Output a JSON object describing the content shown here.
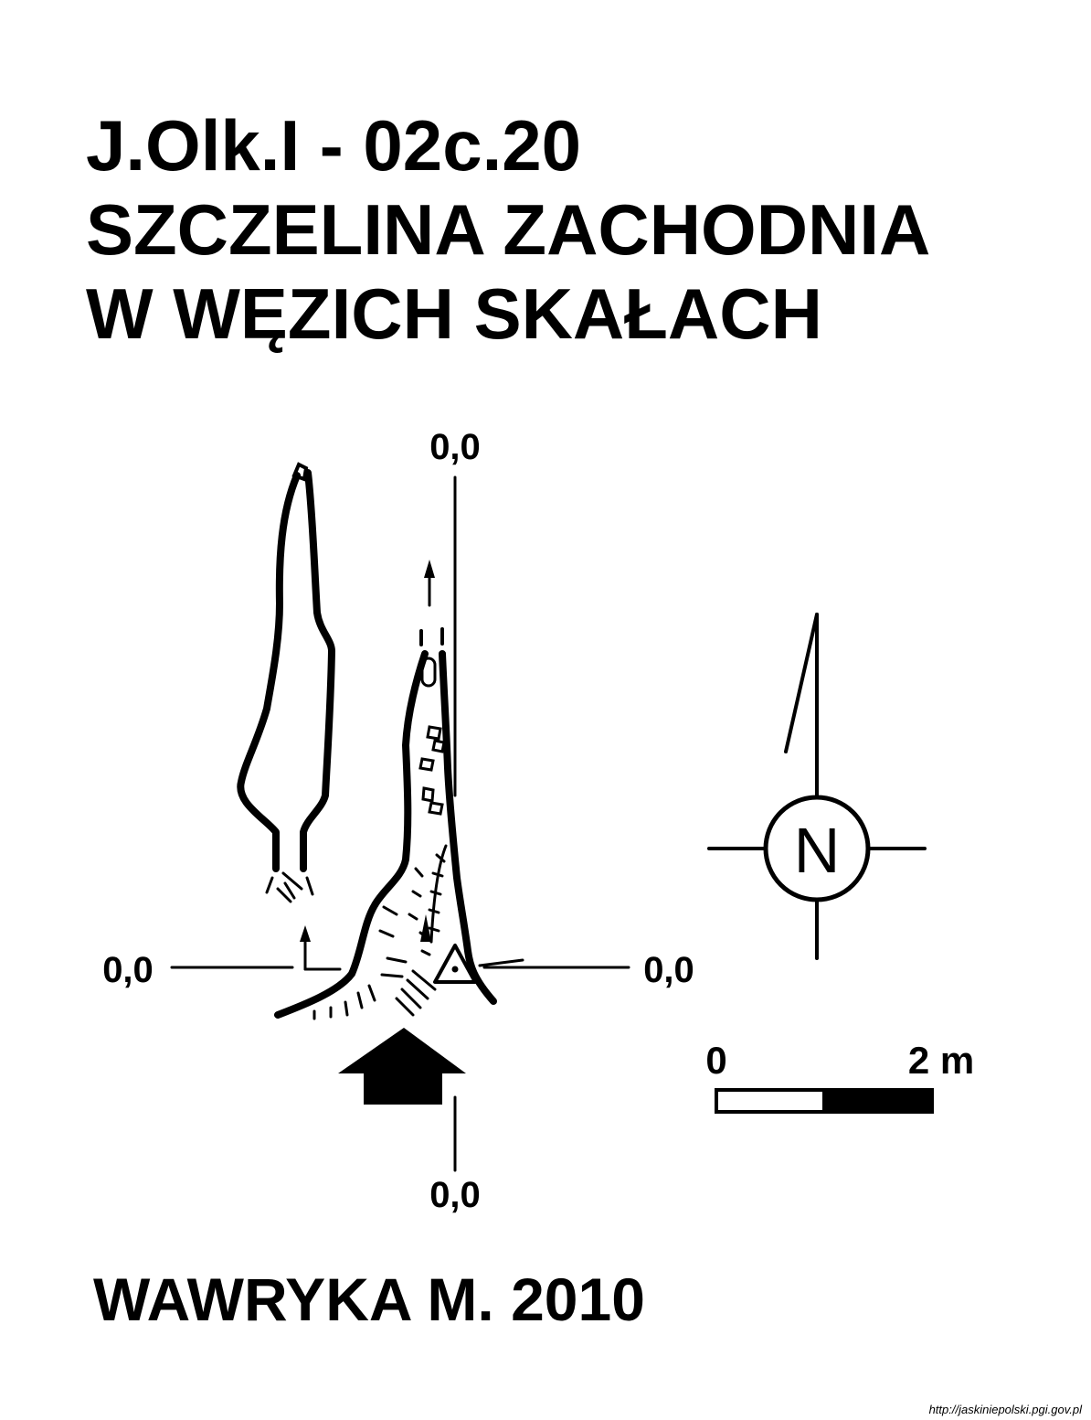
{
  "title": {
    "line1": "J.Olk.I - 02c.20",
    "line2": "SZCZELINA ZACHODNIA",
    "line3": "W WĘZICH SKAŁACH"
  },
  "datum_labels": {
    "top": "0,0",
    "left": "0,0",
    "right": "0,0",
    "bottom": "0,0"
  },
  "compass": {
    "letter": "N"
  },
  "scale_bar": {
    "start_label": "0",
    "end_label": "2 m"
  },
  "author": "WAWRYKA M. 2010",
  "source_url": "http://jaskiniepolski.pgi.gov.pl",
  "colors": {
    "ink": "#000000",
    "background": "#ffffff"
  },
  "symbols": [
    "entrance-arrow",
    "north-arrow",
    "survey-station-triangle",
    "rubble-blocks",
    "ledge-hachures"
  ]
}
